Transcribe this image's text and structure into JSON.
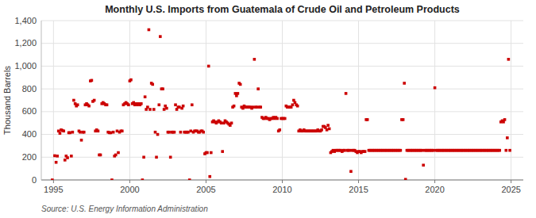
{
  "chart_data": {
    "type": "scatter",
    "title": "Monthly U.S. Imports from Guatemala of Crude Oil and Petroleum Products",
    "ylabel": "Thousand Barrels",
    "source": "Source: U.S. Energy Information Administration",
    "color": "#cc0000",
    "marker": "square",
    "grid": true,
    "xlim": [
      1994.2,
      2025.8
    ],
    "xticks": [
      1995,
      2000,
      2005,
      2010,
      2015,
      2020,
      2025
    ],
    "ylim": [
      0,
      1400
    ],
    "yticks": [
      0,
      200,
      400,
      600,
      800,
      {
        "value": 1000,
        "label": "1,000"
      },
      {
        "value": 1200,
        "label": "1,200"
      },
      {
        "value": 1400,
        "label": "1,400"
      }
    ],
    "x": [
      1994.92,
      1995.08,
      1995.17,
      1995.25,
      1995.33,
      1995.42,
      1995.5,
      1995.58,
      1995.67,
      1995.75,
      1995.83,
      1995.92,
      1996.0,
      1996.08,
      1996.17,
      1996.25,
      1996.33,
      1996.42,
      1996.5,
      1996.58,
      1996.67,
      1996.75,
      1996.83,
      1996.92,
      1997.0,
      1997.08,
      1997.17,
      1997.25,
      1997.33,
      1997.42,
      1997.5,
      1997.58,
      1997.67,
      1997.75,
      1997.83,
      1997.92,
      1998.0,
      1998.08,
      1998.17,
      1998.25,
      1998.33,
      1998.42,
      1998.5,
      1998.58,
      1998.67,
      1998.75,
      1998.83,
      1998.92,
      1999.0,
      1999.08,
      1999.17,
      1999.25,
      1999.33,
      1999.42,
      1999.5,
      1999.58,
      1999.67,
      1999.75,
      1999.83,
      1999.92,
      2000.0,
      2000.08,
      2000.17,
      2000.25,
      2000.33,
      2000.42,
      2000.5,
      2000.58,
      2000.67,
      2000.75,
      2000.83,
      2000.92,
      2001.0,
      2001.08,
      2001.17,
      2001.25,
      2001.33,
      2001.42,
      2001.5,
      2001.58,
      2001.67,
      2001.75,
      2001.83,
      2001.92,
      2002.0,
      2002.08,
      2002.17,
      2002.25,
      2002.33,
      2002.42,
      2002.5,
      2002.58,
      2002.67,
      2002.75,
      2002.83,
      2002.92,
      2003.0,
      2003.08,
      2003.17,
      2003.25,
      2003.33,
      2003.42,
      2003.5,
      2003.58,
      2003.67,
      2003.75,
      2003.83,
      2003.92,
      2004.0,
      2004.08,
      2004.17,
      2004.25,
      2004.33,
      2004.42,
      2004.5,
      2004.58,
      2004.67,
      2004.75,
      2004.83,
      2004.92,
      2005.0,
      2005.08,
      2005.17,
      2005.25,
      2005.33,
      2005.42,
      2005.5,
      2005.58,
      2005.67,
      2005.75,
      2005.83,
      2005.92,
      2006.0,
      2006.08,
      2006.17,
      2006.25,
      2006.33,
      2006.42,
      2006.5,
      2006.58,
      2006.67,
      2006.75,
      2006.83,
      2006.92,
      2007.0,
      2007.08,
      2007.17,
      2007.25,
      2007.33,
      2007.42,
      2007.5,
      2007.58,
      2007.67,
      2007.75,
      2007.83,
      2007.92,
      2008.0,
      2008.08,
      2008.17,
      2008.25,
      2008.33,
      2008.42,
      2008.5,
      2008.58,
      2008.67,
      2008.75,
      2008.83,
      2008.92,
      2009.0,
      2009.08,
      2009.17,
      2009.25,
      2009.33,
      2009.42,
      2009.5,
      2009.58,
      2009.67,
      2009.75,
      2009.83,
      2009.92,
      2010.0,
      2010.08,
      2010.17,
      2010.25,
      2010.33,
      2010.42,
      2010.5,
      2010.58,
      2010.67,
      2010.75,
      2010.83,
      2010.92,
      2011.0,
      2011.08,
      2011.17,
      2011.25,
      2011.33,
      2011.42,
      2011.5,
      2011.58,
      2011.67,
      2011.75,
      2011.83,
      2011.92,
      2012.0,
      2012.08,
      2012.17,
      2012.25,
      2012.33,
      2012.42,
      2012.5,
      2012.58,
      2012.67,
      2012.75,
      2012.83,
      2012.92,
      2013.0,
      2013.08,
      2013.17,
      2013.25,
      2013.33,
      2013.42,
      2013.5,
      2013.58,
      2013.67,
      2013.75,
      2013.83,
      2013.92,
      2014.0,
      2014.08,
      2014.17,
      2014.25,
      2014.33,
      2014.42,
      2014.5,
      2014.58,
      2014.67,
      2014.75,
      2014.83,
      2014.92,
      2015.0,
      2015.08,
      2015.17,
      2015.25,
      2015.33,
      2015.42,
      2015.5,
      2015.58,
      2015.67,
      2015.75,
      2015.83,
      2015.92,
      2016.0,
      2016.08,
      2016.17,
      2016.25,
      2016.33,
      2016.42,
      2016.5,
      2016.58,
      2016.67,
      2016.75,
      2016.83,
      2016.92,
      2017.0,
      2017.08,
      2017.17,
      2017.25,
      2017.33,
      2017.42,
      2017.5,
      2017.58,
      2017.67,
      2017.75,
      2017.83,
      2017.92,
      2018.0,
      2018.08,
      2018.17,
      2018.25,
      2018.33,
      2018.42,
      2018.5,
      2018.58,
      2018.67,
      2018.75,
      2018.83,
      2018.92,
      2019.0,
      2019.08,
      2019.17,
      2019.25,
      2019.33,
      2019.42,
      2019.5,
      2019.58,
      2019.67,
      2019.75,
      2019.83,
      2019.92,
      2020.0,
      2020.08,
      2020.17,
      2020.25,
      2020.33,
      2020.42,
      2020.5,
      2020.58,
      2020.67,
      2020.75,
      2020.83,
      2020.92,
      2021.0,
      2021.08,
      2021.17,
      2021.25,
      2021.33,
      2021.42,
      2021.5,
      2021.58,
      2021.67,
      2021.75,
      2021.83,
      2021.92,
      2022.0,
      2022.08,
      2022.17,
      2022.25,
      2022.33,
      2022.42,
      2022.5,
      2022.58,
      2022.67,
      2022.75,
      2022.83,
      2022.92,
      2023.0,
      2023.08,
      2023.17,
      2023.25,
      2023.33,
      2023.42,
      2023.5,
      2023.58,
      2023.67,
      2023.75,
      2023.83,
      2023.92,
      2024.0,
      2024.08,
      2024.17,
      2024.25,
      2024.33,
      2024.42,
      2024.5,
      2024.58,
      2024.67,
      2024.75,
      2024.83,
      2024.92
    ],
    "values": [
      0,
      213,
      155,
      210,
      430,
      410,
      440,
      435,
      430,
      175,
      210,
      195,
      415,
      415,
      210,
      420,
      700,
      670,
      650,
      660,
      430,
      420,
      350,
      420,
      420,
      660,
      670,
      660,
      650,
      870,
      875,
      690,
      700,
      430,
      440,
      430,
      220,
      220,
      670,
      680,
      670,
      660,
      660,
      420,
      415,
      415,
      0,
      420,
      210,
      220,
      430,
      240,
      420,
      430,
      430,
      660,
      670,
      680,
      670,
      660,
      870,
      880,
      670,
      680,
      660,
      670,
      660,
      670,
      660,
      670,
      0,
      200,
      730,
      620,
      640,
      1320,
      620,
      850,
      840,
      620,
      420,
      200,
      400,
      660,
      1260,
      800,
      800,
      620,
      650,
      630,
      420,
      420,
      200,
      420,
      420,
      420,
      660,
      620,
      640,
      640,
      420,
      630,
      650,
      420,
      420,
      420,
      420,
      0,
      430,
      660,
      420,
      430,
      430,
      430,
      420,
      420,
      430,
      430,
      420,
      230,
      240,
      240,
      1000,
      30,
      240,
      510,
      520,
      510,
      500,
      510,
      520,
      510,
      500,
      250,
      500,
      520,
      510,
      500,
      490,
      480,
      500,
      640,
      650,
      760,
      740,
      760,
      850,
      840,
      640,
      630,
      650,
      640,
      640,
      640,
      640,
      640,
      630,
      640,
      1060,
      640,
      640,
      800,
      640,
      640,
      550,
      540,
      540,
      550,
      540,
      540,
      530,
      540,
      540,
      550,
      540,
      550,
      540,
      430,
      440,
      540,
      540,
      540,
      540,
      650,
      640,
      640,
      640,
      640,
      660,
      700,
      680,
      660,
      650,
      430,
      440,
      430,
      430,
      440,
      430,
      430,
      430,
      430,
      430,
      430,
      430,
      430,
      430,
      430,
      440,
      430,
      430,
      440,
      470,
      470,
      460,
      440,
      480,
      450,
      240,
      250,
      260,
      250,
      260,
      260,
      260,
      260,
      260,
      250,
      260,
      260,
      760,
      260,
      260,
      260,
      75,
      260,
      260,
      260,
      250,
      240,
      250,
      250,
      240,
      250,
      250,
      250,
      530,
      530,
      260,
      260,
      260,
      260,
      260,
      260,
      260,
      260,
      260,
      260,
      260,
      260,
      260,
      260,
      260,
      260,
      260,
      260,
      260,
      260,
      260,
      260,
      260,
      260,
      260,
      260,
      530,
      530,
      850,
      5,
      260,
      260,
      260,
      260,
      260,
      260,
      260,
      260,
      260,
      260,
      260,
      260,
      260,
      130,
      260,
      260,
      260,
      260,
      260,
      260,
      260,
      260,
      810,
      260,
      260,
      260,
      260,
      260,
      260,
      260,
      260,
      260,
      260,
      260,
      260,
      260,
      260,
      260,
      260,
      260,
      260,
      260,
      260,
      260,
      260,
      260,
      260,
      260,
      260,
      260,
      260,
      260,
      260,
      260,
      260,
      260,
      260,
      260,
      260,
      260,
      260,
      260,
      260,
      260,
      260,
      260,
      260,
      260,
      260,
      260,
      260,
      260,
      260,
      260,
      510,
      520,
      510,
      530,
      260,
      370,
      1060,
      260
    ]
  }
}
